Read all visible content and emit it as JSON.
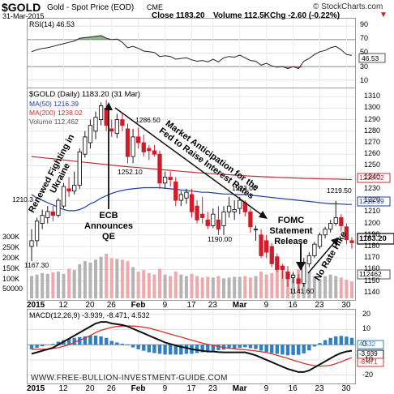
{
  "header": {
    "symbol": "$GOLD",
    "name": "Gold - Spot Price (EOD)",
    "exchange": "CME",
    "brand": "© StockCharts.com",
    "date": "31-Mar-2015",
    "close": "Close 1183.20",
    "volume": "Volume 112.5K",
    "chg": "Chg -2.60 (-0.22%)",
    "chg_arrow": "▼"
  },
  "rsi": {
    "label": "RSI(14) 46.53",
    "value_badge": "46.53",
    "ticks": [
      "90",
      "70",
      "50",
      "30",
      "10"
    ]
  },
  "price_panel": {
    "legend": {
      "gold": "$GOLD (Daily) 1183.20 (31 Mar)",
      "ma50": "MA(50) 1216.39",
      "ma200": "MA(200) 1238.02",
      "volume": "Volume 112,462"
    },
    "price_ticks": [
      "1310",
      "1300",
      "1290",
      "1280",
      "1270",
      "1260",
      "1250",
      "1240",
      "1230",
      "1220",
      "1210",
      "1200",
      "1190",
      "1180",
      "1170",
      "1160",
      "1150",
      "1140"
    ],
    "volume_ticks": [
      "300K",
      "250K",
      "200K",
      "150K",
      "100K",
      "50000"
    ],
    "badges": {
      "ma200": "1238.02",
      "ma50": "1216.39",
      "price": "1183.20",
      "volume": "112462"
    },
    "price_labels": {
      "p1286": "1286.50",
      "p1252": "1252.10",
      "p1210": "1210.3",
      "p1167": "1167.30",
      "p1223": "1223.00",
      "p1190": "1190.00",
      "p1219": "1219.50",
      "p1141": "1141.60"
    },
    "annotations": {
      "ukraine": "Renewed Fighting in Ukraine",
      "ecb": "ECB Announces QE",
      "market": "Market Anticipation for the Fed to Raise Interest Rates",
      "fomc": "FOMC Statement Release",
      "nohike": "No Rate Hike"
    }
  },
  "macd": {
    "label": "MACD(12,26,9) -3.939, -8.471, 4.532",
    "ticks": [
      "20",
      "10",
      "0",
      "-10",
      "-20"
    ],
    "badges": [
      "4.532",
      "-3.939",
      "-8.471"
    ],
    "watermark": "WWW.FREE-BULLION-INVESTMENT-GUIDE.COM"
  },
  "x_axis": {
    "labels": [
      "2015",
      "12",
      "20",
      "26",
      "Feb",
      "9",
      "17",
      "23",
      "Mar",
      "9",
      "16",
      "23",
      "30"
    ]
  },
  "colors": {
    "up": "#1a1a1a",
    "down": "#d11a2a",
    "ma50": "#1f3f9f",
    "ma200": "#c0303a",
    "vol_up": "#b4b4b4",
    "vol_down": "#eda9ab",
    "hist": "#2f7fc1",
    "macd_line": "#111111",
    "signal_line": "#d9312b",
    "badge_fill": "#ffffff"
  },
  "chart_data": {
    "type": "candlestick",
    "title": "$GOLD Gold - Spot Price (EOD) CME",
    "ylim": [
      1135,
      1315
    ],
    "x": [
      "Jan 2",
      "Jan 5",
      "Jan 6",
      "Jan 7",
      "Jan 8",
      "Jan 9",
      "Jan 12",
      "Jan 13",
      "Jan 14",
      "Jan 15",
      "Jan 16",
      "Jan 20",
      "Jan 21",
      "Jan 22",
      "Jan 23",
      "Jan 26",
      "Jan 27",
      "Jan 28",
      "Jan 29",
      "Jan 30",
      "Feb 2",
      "Feb 3",
      "Feb 4",
      "Feb 5",
      "Feb 6",
      "Feb 9",
      "Feb 10",
      "Feb 11",
      "Feb 12",
      "Feb 13",
      "Feb 17",
      "Feb 18",
      "Feb 19",
      "Feb 20",
      "Feb 23",
      "Feb 24",
      "Feb 25",
      "Feb 26",
      "Feb 27",
      "Mar 2",
      "Mar 3",
      "Mar 4",
      "Mar 5",
      "Mar 6",
      "Mar 9",
      "Mar 10",
      "Mar 11",
      "Mar 12",
      "Mar 13",
      "Mar 16",
      "Mar 17",
      "Mar 18",
      "Mar 19",
      "Mar 20",
      "Mar 23",
      "Mar 24",
      "Mar 25",
      "Mar 26",
      "Mar 27",
      "Mar 30",
      "Mar 31"
    ],
    "series": [
      {
        "open": [
          1180,
          1185,
          1200,
          1205,
          1210,
          1207,
          1215,
          1230,
          1228,
          1233,
          1260,
          1270,
          1280,
          1290,
          1300,
          1282,
          1278,
          1290,
          1282,
          1258,
          1275,
          1270,
          1265,
          1263,
          1260,
          1235,
          1240,
          1236,
          1220,
          1222,
          1225,
          1215,
          1208,
          1203,
          1198,
          1203,
          1198,
          1210,
          1210,
          1213,
          1218,
          1210,
          1195,
          1190,
          1185,
          1180,
          1171,
          1163,
          1158,
          1153,
          1152,
          1148,
          1165,
          1172,
          1180,
          1190,
          1195,
          1200,
          1205,
          1197,
          1185
        ],
        "high": [
          1195,
          1205,
          1212,
          1215,
          1215,
          1222,
          1235,
          1240,
          1245,
          1265,
          1280,
          1290,
          1297,
          1305,
          1307,
          1290,
          1295,
          1295,
          1286.5,
          1282,
          1283,
          1277,
          1268,
          1268,
          1263,
          1245,
          1245,
          1240,
          1228,
          1230,
          1230,
          1220,
          1223,
          1210,
          1213,
          1215,
          1215,
          1223,
          1220,
          1223,
          1220,
          1213,
          1198,
          1195,
          1190,
          1183,
          1174,
          1165,
          1163,
          1158,
          1156,
          1170,
          1175,
          1184,
          1192,
          1197,
          1203,
          1219.5,
          1208,
          1200,
          1188
        ],
        "low": [
          1167.3,
          1180,
          1195,
          1200,
          1202,
          1205,
          1213,
          1223,
          1225,
          1230,
          1257,
          1265,
          1273,
          1285,
          1280,
          1275,
          1274,
          1280,
          1252,
          1252.1,
          1265,
          1258,
          1255,
          1258,
          1230,
          1230,
          1232,
          1215,
          1215,
          1217,
          1205,
          1200,
          1200,
          1195,
          1196,
          1190,
          1190,
          1205,
          1203,
          1208,
          1206,
          1192,
          1185,
          1170,
          1170,
          1162,
          1158,
          1152,
          1145,
          1148,
          1141.6,
          1145,
          1162,
          1170,
          1178,
          1187,
          1192,
          1198,
          1193,
          1182,
          1178
        ],
        "close": [
          1185,
          1202,
          1207,
          1210.3,
          1207,
          1220,
          1232,
          1228,
          1233,
          1262,
          1275,
          1285,
          1292,
          1302,
          1285,
          1280,
          1290,
          1285,
          1258,
          1275,
          1270,
          1262,
          1263,
          1260,
          1235,
          1240,
          1238,
          1220,
          1225,
          1227,
          1210,
          1203,
          1205,
          1198,
          1208,
          1195,
          1210,
          1215,
          1212,
          1220,
          1210,
          1197,
          1195,
          1172,
          1175,
          1165,
          1160,
          1160,
          1152,
          1155,
          1148,
          1166,
          1172,
          1182,
          1190,
          1195,
          1200,
          1205,
          1198,
          1185.8,
          1183.2
        ]
      },
      {
        "name": "MA(50)",
        "values": [
          1225,
          1222,
          1220,
          1218,
          1216,
          1214,
          1212,
          1211,
          1211,
          1212,
          1214,
          1217,
          1219,
          1222,
          1224,
          1226,
          1227.5,
          1228.5,
          1229.5,
          1230,
          1230.5,
          1231,
          1231,
          1231,
          1231,
          1230.5,
          1230,
          1229.5,
          1229,
          1228.5,
          1228,
          1227.5,
          1227,
          1227,
          1226.5,
          1226,
          1225.5,
          1225.5,
          1225,
          1225,
          1225,
          1224.5,
          1224,
          1223.5,
          1223,
          1222.5,
          1222,
          1221.5,
          1221,
          1220.5,
          1220,
          1219.5,
          1219,
          1218.5,
          1218,
          1217.5,
          1217,
          1217,
          1216.8,
          1216.5,
          1216.39
        ]
      },
      {
        "name": "MA(200)",
        "values": [
          1258,
          1257.5,
          1257,
          1256.5,
          1256,
          1255.5,
          1255,
          1254.5,
          1254,
          1253.5,
          1253,
          1252.5,
          1252,
          1251.5,
          1251,
          1250.5,
          1250,
          1249.6,
          1249.2,
          1248.8,
          1248.4,
          1248,
          1247.6,
          1247.2,
          1246.8,
          1246.4,
          1246,
          1245.6,
          1245.2,
          1244.8,
          1244.4,
          1244,
          1243.7,
          1243.4,
          1243.1,
          1242.8,
          1242.5,
          1242.2,
          1241.9,
          1241.6,
          1241.3,
          1241,
          1240.8,
          1240.6,
          1240.4,
          1240.2,
          1240,
          1239.8,
          1239.6,
          1239.4,
          1239.2,
          1239,
          1238.9,
          1238.8,
          1238.7,
          1238.6,
          1238.5,
          1238.4,
          1238.3,
          1238.15,
          1238.02
        ]
      },
      {
        "name": "Volume",
        "values": [
          150000,
          160000,
          170000,
          165000,
          175000,
          180000,
          165000,
          200000,
          190000,
          230000,
          250000,
          240000,
          260000,
          280000,
          300000,
          270000,
          265000,
          260000,
          250000,
          210000,
          180000,
          190000,
          170000,
          160000,
          200000,
          160000,
          150000,
          180000,
          160000,
          150000,
          165000,
          150000,
          140000,
          145000,
          140000,
          150000,
          135000,
          140000,
          145000,
          145000,
          150000,
          140000,
          150000,
          180000,
          160000,
          170000,
          190000,
          200000,
          170000,
          165000,
          195000,
          205000,
          180000,
          150000,
          130000,
          150000,
          160000,
          150000,
          140000,
          125000,
          112462
        ]
      },
      {
        "name": "RSI(14)",
        "values": [
          52,
          55,
          57,
          58,
          60,
          62,
          64,
          66,
          68,
          72,
          73,
          74,
          75,
          76,
          72,
          70,
          71,
          66,
          58,
          60,
          57,
          53,
          52,
          51,
          45,
          46,
          45,
          41,
          42,
          43,
          40,
          38,
          39,
          37,
          41,
          37,
          43,
          45,
          44,
          47,
          43,
          39,
          38,
          32,
          35,
          31,
          29,
          30,
          27,
          30,
          27,
          38,
          42,
          48,
          52,
          54,
          58,
          60,
          55,
          48,
          46.53
        ]
      },
      {
        "name": "MACD",
        "values": [
          -6,
          -5,
          -4,
          -3,
          -2,
          0,
          2,
          4,
          6,
          8,
          10,
          12,
          14,
          15,
          15,
          14,
          13.5,
          13,
          12,
          10.5,
          9,
          7.5,
          6,
          4.5,
          3,
          1.5,
          0.5,
          -0.5,
          -1.5,
          -2,
          -3,
          -3.5,
          -4,
          -4.5,
          -4.5,
          -4.8,
          -5,
          -5,
          -5,
          -5,
          -5,
          -6,
          -7,
          -8.5,
          -10,
          -11.5,
          -13,
          -14.5,
          -16,
          -17,
          -18,
          -18,
          -17,
          -15,
          -13,
          -11,
          -9,
          -7,
          -5.5,
          -4.5,
          -3.939
        ]
      },
      {
        "name": "Signal",
        "values": [
          -3,
          -3,
          -3,
          -3,
          -2.5,
          -2,
          -1,
          0,
          1.5,
          3,
          4.5,
          6,
          8,
          9.5,
          10.5,
          11.5,
          12,
          12.3,
          12.4,
          12.3,
          12,
          11.5,
          11,
          10,
          9,
          8,
          7,
          6,
          5,
          4,
          3,
          2,
          1,
          0.2,
          -0.5,
          -1.2,
          -1.8,
          -2.3,
          -2.7,
          -3,
          -3.3,
          -3.7,
          -4.1,
          -4.6,
          -5.2,
          -6,
          -7,
          -8,
          -9,
          -10.2,
          -11.3,
          -12.3,
          -13.2,
          -13.8,
          -14.1,
          -14,
          -13.5,
          -12.5,
          -11.3,
          -9.8,
          -8.471
        ]
      },
      {
        "name": "Histogram",
        "values": [
          -3,
          -2,
          -1,
          0,
          0.5,
          2,
          3,
          4,
          4.5,
          5,
          5.5,
          6,
          6,
          5.5,
          4.5,
          2.5,
          1.5,
          0.7,
          -0.4,
          -1.8,
          -3,
          -4,
          -5,
          -5.5,
          -6,
          -6.5,
          -6.5,
          -6.5,
          -6.5,
          -6,
          -6,
          -5.5,
          -5,
          -4.7,
          -4,
          -3.6,
          -3.2,
          -2.7,
          -2.3,
          -2,
          -1.7,
          -2.3,
          -2.9,
          -3.9,
          -4.8,
          -5.5,
          -6,
          -6.5,
          -7,
          -6.8,
          -6.7,
          -5.7,
          -3.8,
          -1.2,
          1.1,
          3,
          4.5,
          5.5,
          5.8,
          5.3,
          4.532
        ]
      }
    ],
    "macd_ylim": [
      -25,
      22
    ],
    "rsi_ylim": [
      0,
      100
    ]
  }
}
